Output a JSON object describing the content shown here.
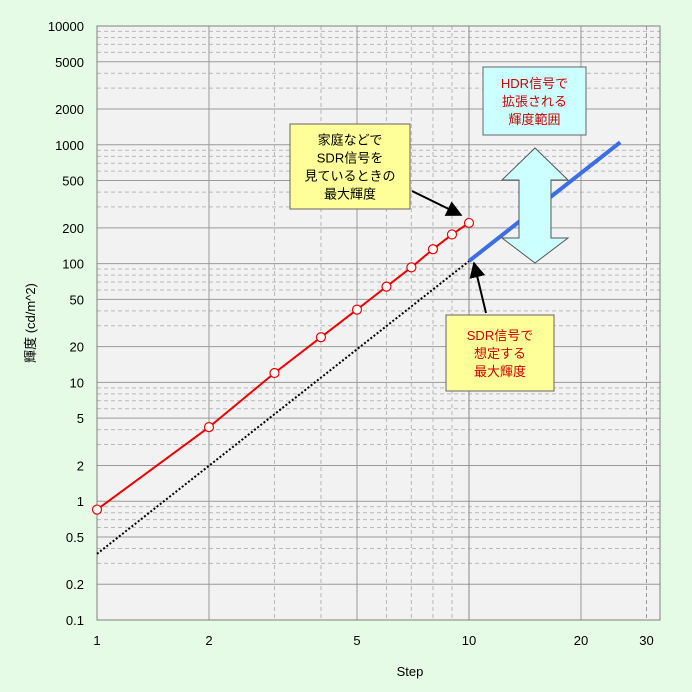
{
  "chart_data": {
    "type": "line",
    "xscale": "log",
    "yscale": "log",
    "xlim": [
      1,
      32
    ],
    "ylim": [
      0.1,
      10000
    ],
    "xlabel": "Step",
    "ylabel": "輝度 (cd/m^2)",
    "x_ticks": [
      1,
      2,
      5,
      10,
      20,
      30
    ],
    "y_ticks": [
      0.1,
      0.2,
      0.5,
      1,
      2,
      5,
      10,
      20,
      50,
      100,
      200,
      500,
      1000,
      2000,
      5000,
      10000
    ],
    "grid": true,
    "series": [
      {
        "style": "red solid line with open circle markers",
        "color": "#ee0000",
        "x": [
          1,
          2,
          3,
          4,
          5,
          6,
          7,
          8,
          9,
          10
        ],
        "y": [
          0.85,
          4.2,
          12,
          24,
          41,
          64,
          93,
          132,
          176,
          220
        ]
      },
      {
        "style": "black dotted line",
        "color": "#000000",
        "x": [
          1,
          10
        ],
        "y": [
          0.36,
          105
        ]
      },
      {
        "style": "blue thick line",
        "color": "#3c6ee6",
        "x": [
          10,
          25.5
        ],
        "y": [
          105,
          1050
        ]
      }
    ],
    "annotations": [
      {
        "id": "home",
        "lines": [
          "家庭などで",
          "SDR信号を",
          "見ているときの",
          "最大輝度"
        ],
        "bg": "#ffff99",
        "text_color": "#000000"
      },
      {
        "id": "sdr",
        "lines": [
          "SDR信号で",
          "想定する",
          "最大輝度"
        ],
        "bg": "#ffff99",
        "text_color": "#cc0000"
      },
      {
        "id": "hdr",
        "lines": [
          "HDR信号で",
          "拡張される",
          "輝度範囲"
        ],
        "bg": "#ccffff",
        "text_color": "#cc0000"
      }
    ]
  }
}
